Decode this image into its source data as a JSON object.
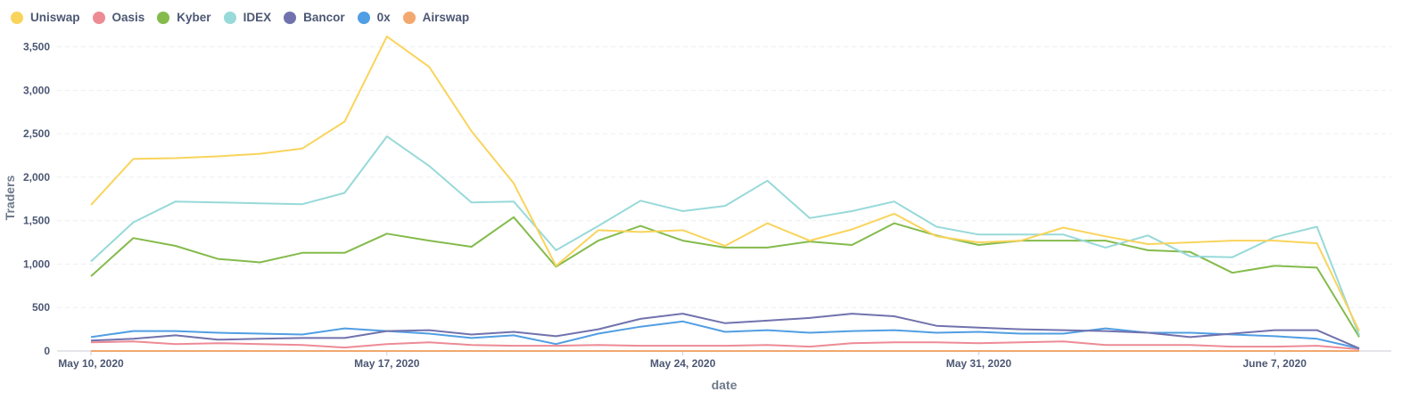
{
  "chart_data": {
    "type": "line",
    "title": "",
    "xlabel": "date",
    "ylabel": "Traders",
    "ylim": [
      0,
      3650
    ],
    "yticks": [
      0,
      500,
      1000,
      1500,
      2000,
      2500,
      3000,
      3500
    ],
    "ytick_labels": [
      "0",
      "500",
      "1,000",
      "1,500",
      "2,000",
      "2,500",
      "3,000",
      "3,500"
    ],
    "x": [
      "2020-05-10",
      "2020-05-11",
      "2020-05-12",
      "2020-05-13",
      "2020-05-14",
      "2020-05-15",
      "2020-05-16",
      "2020-05-17",
      "2020-05-18",
      "2020-05-19",
      "2020-05-20",
      "2020-05-21",
      "2020-05-22",
      "2020-05-23",
      "2020-05-24",
      "2020-05-25",
      "2020-05-26",
      "2020-05-27",
      "2020-05-28",
      "2020-05-29",
      "2020-05-30",
      "2020-05-31",
      "2020-06-01",
      "2020-06-02",
      "2020-06-03",
      "2020-06-04",
      "2020-06-05",
      "2020-06-06",
      "2020-06-07",
      "2020-06-08",
      "2020-06-09"
    ],
    "xticks": [
      {
        "date": "2020-05-10",
        "label": "May 10, 2020"
      },
      {
        "date": "2020-05-17",
        "label": "May 17, 2020"
      },
      {
        "date": "2020-05-24",
        "label": "May 24, 2020"
      },
      {
        "date": "2020-05-31",
        "label": "May 31, 2020"
      },
      {
        "date": "2020-06-07",
        "label": "June 7, 2020"
      }
    ],
    "grid": true,
    "legend_position": "top-left",
    "series": [
      {
        "name": "Uniswap",
        "color": "#f9d45c",
        "values": [
          1680,
          2210,
          2220,
          2240,
          2270,
          2330,
          2640,
          3620,
          3270,
          2530,
          1930,
          980,
          1390,
          1370,
          1390,
          1210,
          1470,
          1270,
          1400,
          1580,
          1320,
          1250,
          1270,
          1420,
          1320,
          1230,
          1250,
          1270,
          1270,
          1240,
          230
        ]
      },
      {
        "name": "Oasis",
        "color": "#ed8b95",
        "values": [
          100,
          110,
          80,
          90,
          80,
          70,
          40,
          80,
          100,
          70,
          60,
          60,
          70,
          60,
          60,
          60,
          70,
          50,
          90,
          100,
          100,
          90,
          100,
          110,
          70,
          70,
          70,
          50,
          50,
          60,
          20
        ]
      },
      {
        "name": "Kyber",
        "color": "#84bb4c",
        "values": [
          860,
          1300,
          1210,
          1060,
          1020,
          1130,
          1130,
          1350,
          1270,
          1200,
          1540,
          970,
          1270,
          1440,
          1270,
          1190,
          1190,
          1260,
          1220,
          1470,
          1330,
          1220,
          1270,
          1270,
          1270,
          1160,
          1140,
          900,
          980,
          960,
          160
        ]
      },
      {
        "name": "IDEX",
        "color": "#98d9d9",
        "values": [
          1030,
          1480,
          1720,
          1710,
          1700,
          1690,
          1820,
          2470,
          2130,
          1710,
          1720,
          1160,
          1440,
          1730,
          1610,
          1670,
          1960,
          1530,
          1610,
          1720,
          1430,
          1340,
          1340,
          1340,
          1190,
          1330,
          1090,
          1080,
          1310,
          1430,
          180
        ]
      },
      {
        "name": "Bancor",
        "color": "#7172ad",
        "values": [
          120,
          140,
          180,
          130,
          140,
          150,
          150,
          230,
          240,
          190,
          220,
          170,
          250,
          370,
          430,
          320,
          350,
          380,
          430,
          400,
          290,
          270,
          250,
          240,
          230,
          210,
          160,
          200,
          240,
          240,
          30
        ]
      },
      {
        "name": "0x",
        "color": "#509ee3",
        "values": [
          160,
          230,
          230,
          210,
          200,
          190,
          260,
          230,
          200,
          150,
          180,
          80,
          200,
          280,
          340,
          220,
          240,
          210,
          230,
          240,
          210,
          220,
          200,
          200,
          260,
          210,
          210,
          190,
          170,
          140,
          30
        ]
      },
      {
        "name": "Airswap",
        "color": "#f2a86f",
        "values": [
          0,
          0,
          0,
          0,
          0,
          0,
          0,
          0,
          0,
          0,
          0,
          0,
          0,
          0,
          0,
          0,
          0,
          0,
          0,
          0,
          0,
          0,
          0,
          0,
          0,
          0,
          0,
          0,
          0,
          0,
          0
        ]
      }
    ]
  }
}
